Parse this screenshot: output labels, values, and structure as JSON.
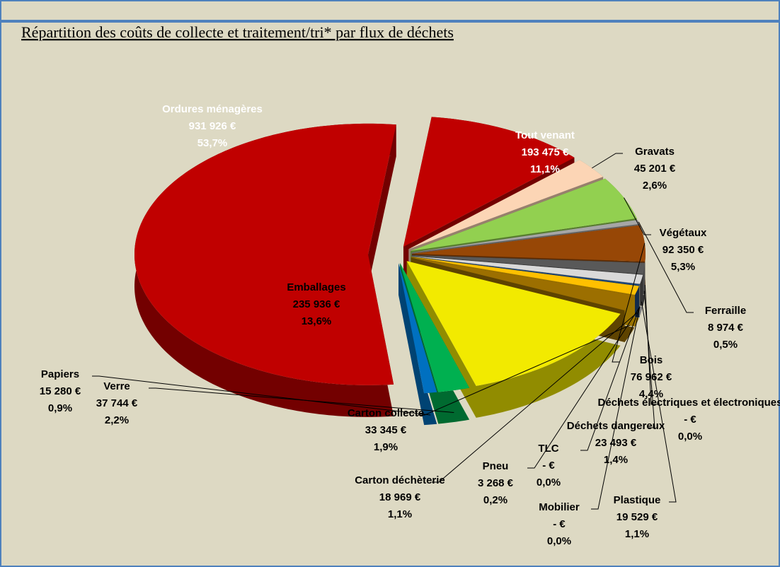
{
  "chart_data": {
    "type": "pie3d",
    "title": "Répartition des coûts de collecte et traitement/tri* par flux de déchets",
    "categories": [
      "Ordures ménagères",
      "Tout venant",
      "Gravats",
      "Végétaux",
      "Ferraille",
      "Bois",
      "Déchets électriques et électroniques",
      "Déchets dangereux",
      "Plastique",
      "Mobilier",
      "TLC",
      "Pneu",
      "Carton déchèterie",
      "Carton collecte",
      "Emballages",
      "Verre",
      "Papiers"
    ],
    "values": [
      931926,
      193475,
      45201,
      92350,
      8974,
      76962,
      0,
      23493,
      19529,
      0,
      0,
      3268,
      18969,
      33345,
      235936,
      37744,
      15280
    ],
    "value_labels": [
      "931 926 €",
      "193 475 €",
      "45 201 €",
      "92 350 €",
      "8 974 €",
      "76 962 €",
      "-   €",
      "23 493 €",
      "19 529 €",
      "-   €",
      "-   €",
      "3 268 €",
      "18 969 €",
      "33 345 €",
      "235 936 €",
      "37 744 €",
      "15 280 €"
    ],
    "percentages": [
      53.7,
      11.1,
      2.6,
      5.3,
      0.5,
      4.4,
      0.0,
      1.4,
      1.1,
      0.0,
      0.0,
      0.2,
      1.1,
      1.9,
      13.6,
      2.2,
      0.9
    ],
    "percentage_labels": [
      "53,7%",
      "11,1%",
      "2,6%",
      "5,3%",
      "0,5%",
      "4,4%",
      "0,0%",
      "1,4%",
      "1,1%",
      "0,0%",
      "0,0%",
      "0,2%",
      "1,1%",
      "1,9%",
      "13,6%",
      "2,2%",
      "0,9%"
    ],
    "colors": [
      "#c00000",
      "#c00000",
      "#fcd5b5",
      "#92d050",
      "#a6a6a6",
      "#974706",
      "#7f7f7f",
      "#595959",
      "#d9d9d9",
      "#ddd9c3",
      "#c4bd97",
      "#1f497d",
      "#ffc000",
      "#9c6f00",
      "#f2ea00",
      "#00b050",
      "#0070c0"
    ]
  }
}
